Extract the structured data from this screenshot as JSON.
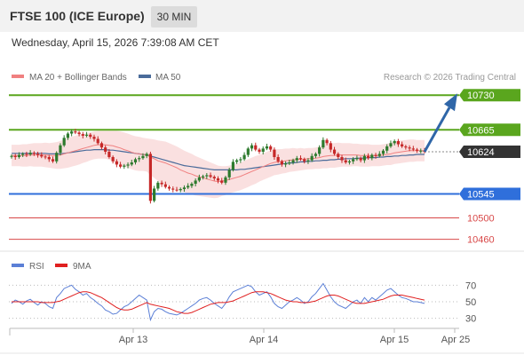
{
  "header": {
    "title": "FTSE 100 (ICE Europe)",
    "timeframe": "30 MIN"
  },
  "datetime": "Wednesday, April 15, 2026 7:39:08 AM CET",
  "colors": {
    "up": "#2d7a2d",
    "down": "#c62828",
    "resistance": "#5aa61e",
    "support": "#2f6fdb",
    "pivot": "#333333",
    "target_red": "#d84848",
    "bollinger": "#f6c6c6",
    "ma20": "#f08080",
    "ma50": "#4a6b9a",
    "rsi": "#5b7fd6",
    "rsi_ma": "#e02020",
    "arrow": "#2f66a8"
  },
  "chart_data": [
    {
      "type": "candlestick",
      "legend": [
        {
          "name": "MA 20 + Bollinger Bands",
          "color": "#f08080"
        },
        {
          "name": "MA 50",
          "color": "#4a6b9a"
        }
      ],
      "credit": "Research © 2026 Trading Central",
      "y_range": [
        10446,
        10747
      ],
      "levels": [
        {
          "value": 10730,
          "label": "10730",
          "kind": "resistance"
        },
        {
          "value": 10665,
          "label": "10665",
          "kind": "resistance"
        },
        {
          "value": 10624,
          "label": "10624",
          "kind": "pivot"
        },
        {
          "value": 10545,
          "label": "10545",
          "kind": "support"
        },
        {
          "value": 10500,
          "label": "10500",
          "kind": "target"
        },
        {
          "value": 10460,
          "label": "10460",
          "kind": "target"
        }
      ],
      "x_ticks": [
        "Apr 13",
        "Apr 14",
        "Apr 15",
        "Apr 25"
      ],
      "close": [
        10616,
        10614,
        10618,
        10620,
        10619,
        10622,
        10620,
        10618,
        10615,
        10614,
        10610,
        10606,
        10622,
        10636,
        10650,
        10658,
        10662,
        10660,
        10657,
        10654,
        10656,
        10652,
        10648,
        10640,
        10632,
        10624,
        10614,
        10606,
        10600,
        10596,
        10598,
        10600,
        10604,
        10610,
        10612,
        10616,
        10620,
        10532,
        10555,
        10566,
        10563,
        10558,
        10555,
        10553,
        10552,
        10554,
        10557,
        10560,
        10564,
        10570,
        10576,
        10578,
        10580,
        10577,
        10574,
        10570,
        10566,
        10576,
        10590,
        10605,
        10608,
        10610,
        10618,
        10630,
        10636,
        10628,
        10624,
        10630,
        10634,
        10628,
        10614,
        10606,
        10600,
        10602,
        10604,
        10608,
        10612,
        10610,
        10606,
        10608,
        10616,
        10620,
        10632,
        10646,
        10640,
        10628,
        10620,
        10614,
        10608,
        10604,
        10606,
        10610,
        10612,
        10608,
        10616,
        10612,
        10618,
        10616,
        10620,
        10626,
        10634,
        10640,
        10644,
        10638,
        10634,
        10632,
        10630,
        10628,
        10626,
        10626,
        10624
      ],
      "ma20": [
        10617,
        10617,
        10617,
        10617,
        10617,
        10618,
        10618,
        10618,
        10618,
        10618,
        10617,
        10617,
        10617,
        10618,
        10620,
        10622,
        10624,
        10626,
        10628,
        10630,
        10632,
        10634,
        10636,
        10637,
        10637,
        10637,
        10636,
        10635,
        10633,
        10631,
        10628,
        10626,
        10623,
        10621,
        10620,
        10619,
        10618,
        10614,
        10611,
        10607,
        10605,
        10603,
        10600,
        10597,
        10594,
        10590,
        10587,
        10584,
        10582,
        10579,
        10577,
        10575,
        10573,
        10571,
        10569,
        10568,
        10569,
        10570,
        10572,
        10574,
        10576,
        10578,
        10581,
        10584,
        10587,
        10590,
        10593,
        10596,
        10599,
        10602,
        10604,
        10605,
        10606,
        10607,
        10608,
        10609,
        10609,
        10610,
        10610,
        10611,
        10611,
        10612,
        10613,
        10615,
        10616,
        10617,
        10617,
        10618,
        10618,
        10618,
        10618,
        10618,
        10618,
        10617,
        10617,
        10617,
        10617,
        10617,
        10617,
        10618,
        10619,
        10620,
        10622,
        10623,
        10624,
        10625,
        10626,
        10626,
        10626,
        10626,
        10626
      ],
      "ma50": [
        10621,
        10621,
        10621,
        10621,
        10621,
        10621,
        10621,
        10621,
        10621,
        10621,
        10620,
        10620,
        10620,
        10620,
        10621,
        10622,
        10623,
        10624,
        10625,
        10626,
        10627,
        10627,
        10628,
        10628,
        10628,
        10628,
        10627,
        10627,
        10626,
        10625,
        10624,
        10623,
        10622,
        10621,
        10620,
        10619,
        10618,
        10616,
        10614,
        10612,
        10610,
        10608,
        10606,
        10604,
        10602,
        10600,
        10598,
        10597,
        10596,
        10595,
        10594,
        10593,
        10592,
        10591,
        10590,
        10590,
        10590,
        10590,
        10590,
        10590,
        10590,
        10591,
        10591,
        10592,
        10593,
        10594,
        10595,
        10596,
        10597,
        10598,
        10599,
        10600,
        10601,
        10602,
        10603,
        10603,
        10604,
        10605,
        10605,
        10606,
        10606,
        10607,
        10607,
        10608,
        10608,
        10609,
        10609,
        10610,
        10610,
        10611,
        10611,
        10611,
        10612,
        10612,
        10612,
        10613,
        10613,
        10613,
        10614,
        10614,
        10615,
        10615,
        10616,
        10616,
        10617,
        10617,
        10618,
        10618,
        10619,
        10619,
        10619
      ],
      "bb_half_width": [
        20,
        20,
        20,
        21,
        21,
        21,
        22,
        22,
        22,
        23,
        23,
        24,
        25,
        26,
        27,
        28,
        28,
        28,
        28,
        27,
        27,
        26,
        26,
        26,
        26,
        26,
        27,
        28,
        30,
        31,
        32,
        32,
        32,
        32,
        32,
        31,
        31,
        34,
        36,
        38,
        39,
        40,
        40,
        40,
        40,
        40,
        39,
        39,
        38,
        37,
        36,
        35,
        34,
        33,
        32,
        30,
        28,
        27,
        26,
        26,
        26,
        26,
        26,
        26,
        26,
        26,
        25,
        25,
        25,
        25,
        24,
        24,
        23,
        23,
        22,
        22,
        21,
        21,
        20,
        20,
        20,
        20,
        21,
        22,
        23,
        23,
        23,
        23,
        22,
        22,
        22,
        21,
        21,
        21,
        21,
        21,
        20,
        20,
        20,
        20,
        20,
        21,
        21,
        21,
        21,
        21,
        21,
        21,
        20,
        20,
        20
      ]
    },
    {
      "type": "line",
      "legend": [
        {
          "name": "RSI",
          "color": "#5b7fd6"
        },
        {
          "name": "9MA",
          "color": "#e02020"
        }
      ],
      "y_ticks": [
        "70",
        "50",
        "30"
      ],
      "y_range": [
        20,
        80
      ],
      "rsi": [
        48,
        52,
        50,
        47,
        51,
        53,
        49,
        46,
        50,
        48,
        44,
        42,
        55,
        60,
        66,
        68,
        70,
        65,
        62,
        58,
        60,
        55,
        52,
        48,
        45,
        40,
        38,
        35,
        36,
        40,
        44,
        46,
        50,
        54,
        58,
        55,
        52,
        28,
        38,
        42,
        41,
        38,
        36,
        35,
        34,
        36,
        39,
        42,
        45,
        48,
        52,
        54,
        55,
        52,
        48,
        45,
        42,
        48,
        56,
        62,
        64,
        66,
        68,
        70,
        68,
        62,
        58,
        60,
        62,
        56,
        48,
        44,
        42,
        46,
        50,
        52,
        55,
        52,
        48,
        50,
        56,
        60,
        66,
        72,
        64,
        56,
        50,
        46,
        44,
        42,
        46,
        50,
        52,
        48,
        55,
        50,
        55,
        52,
        56,
        60,
        64,
        66,
        62,
        58,
        55,
        54,
        52,
        50,
        50,
        49,
        48
      ],
      "ma9": [
        50,
        50,
        50,
        50,
        50,
        50,
        50,
        50,
        49,
        49,
        49,
        49,
        50,
        51,
        53,
        55,
        57,
        59,
        61,
        62,
        62,
        61,
        59,
        57,
        55,
        52,
        49,
        46,
        43,
        41,
        40,
        40,
        41,
        43,
        45,
        47,
        49,
        47,
        46,
        45,
        44,
        43,
        42,
        40,
        38,
        37,
        36,
        36,
        37,
        39,
        41,
        43,
        45,
        47,
        48,
        49,
        49,
        49,
        50,
        51,
        53,
        55,
        57,
        59,
        61,
        62,
        62,
        62,
        61,
        60,
        58,
        56,
        54,
        52,
        51,
        50,
        50,
        49,
        49,
        49,
        50,
        51,
        53,
        55,
        57,
        58,
        58,
        57,
        55,
        53,
        51,
        49,
        48,
        48,
        48,
        49,
        50,
        51,
        52,
        53,
        55,
        57,
        58,
        58,
        58,
        57,
        56,
        55,
        54,
        53,
        52
      ]
    }
  ]
}
